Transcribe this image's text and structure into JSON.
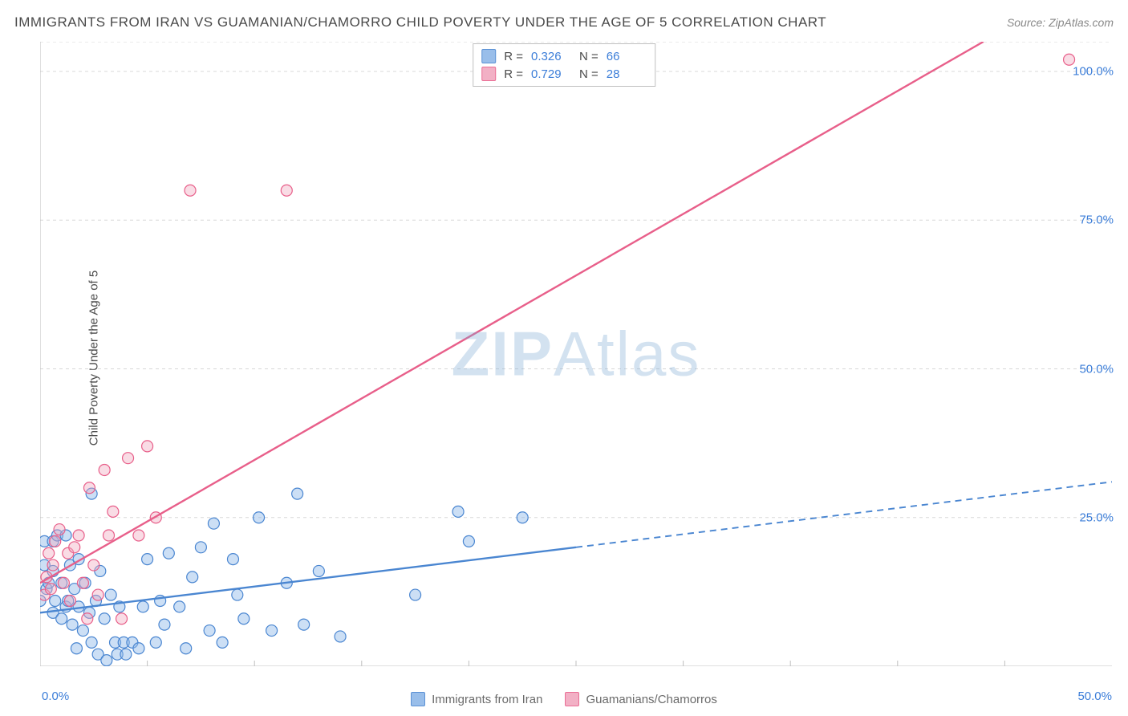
{
  "title": "IMMIGRANTS FROM IRAN VS GUAMANIAN/CHAMORRO CHILD POVERTY UNDER THE AGE OF 5 CORRELATION CHART",
  "source": "Source: ZipAtlas.com",
  "watermark": "ZIPAtlas",
  "y_axis_label": "Child Poverty Under the Age of 5",
  "chart": {
    "type": "scatter",
    "xlim": [
      0,
      50
    ],
    "ylim": [
      0,
      105
    ],
    "x_tick_min": "0.0%",
    "x_tick_max": "50.0%",
    "y_ticks": [
      {
        "value": 25,
        "label": "25.0%"
      },
      {
        "value": 50,
        "label": "50.0%"
      },
      {
        "value": 75,
        "label": "75.0%"
      },
      {
        "value": 100,
        "label": "100.0%"
      }
    ],
    "x_minor_ticks": [
      5,
      10,
      15,
      20,
      25,
      30,
      35,
      40,
      45
    ],
    "grid_color": "#d8d8d8",
    "grid_dash": "4 4",
    "axis_color": "#bfbfbf",
    "background_color": "#ffffff",
    "marker_radius": 7,
    "marker_stroke_width": 1.2,
    "line_width": 2.4,
    "series": [
      {
        "id": "iran",
        "name": "Immigrants from Iran",
        "color_fill": "#8fb8e8",
        "color_stroke": "#4a86d1",
        "fill_opacity": 0.45,
        "R": "0.326",
        "N": "66",
        "trend": {
          "x1": 0,
          "y1": 9,
          "x2": 50,
          "y2": 31,
          "solid_until_x": 25
        },
        "points": [
          [
            0,
            11
          ],
          [
            0.3,
            13
          ],
          [
            0.2,
            21
          ],
          [
            0.2,
            17
          ],
          [
            0.4,
            14
          ],
          [
            0.6,
            9
          ],
          [
            0.6,
            16
          ],
          [
            0.6,
            21
          ],
          [
            0.7,
            11
          ],
          [
            0.8,
            22
          ],
          [
            1.0,
            8
          ],
          [
            1.0,
            14
          ],
          [
            1.2,
            10
          ],
          [
            1.2,
            22
          ],
          [
            1.3,
            11
          ],
          [
            1.4,
            17
          ],
          [
            1.5,
            7
          ],
          [
            1.6,
            13
          ],
          [
            1.7,
            3
          ],
          [
            1.8,
            18
          ],
          [
            1.8,
            10
          ],
          [
            2.0,
            6
          ],
          [
            2.1,
            14
          ],
          [
            2.3,
            9
          ],
          [
            2.4,
            29
          ],
          [
            2.4,
            4
          ],
          [
            2.6,
            11
          ],
          [
            2.7,
            2
          ],
          [
            2.8,
            16
          ],
          [
            3.0,
            8
          ],
          [
            3.1,
            1
          ],
          [
            3.3,
            12
          ],
          [
            3.5,
            4
          ],
          [
            3.6,
            2
          ],
          [
            3.7,
            10
          ],
          [
            3.9,
            4
          ],
          [
            4.0,
            2
          ],
          [
            4.3,
            4
          ],
          [
            4.6,
            3
          ],
          [
            4.8,
            10
          ],
          [
            5.0,
            18
          ],
          [
            5.4,
            4
          ],
          [
            5.6,
            11
          ],
          [
            5.8,
            7
          ],
          [
            6.0,
            19
          ],
          [
            6.5,
            10
          ],
          [
            6.8,
            3
          ],
          [
            7.1,
            15
          ],
          [
            7.5,
            20
          ],
          [
            7.9,
            6
          ],
          [
            8.1,
            24
          ],
          [
            8.5,
            4
          ],
          [
            9.0,
            18
          ],
          [
            9.2,
            12
          ],
          [
            9.5,
            8
          ],
          [
            10.2,
            25
          ],
          [
            10.8,
            6
          ],
          [
            11.5,
            14
          ],
          [
            12.0,
            29
          ],
          [
            12.3,
            7
          ],
          [
            13.0,
            16
          ],
          [
            14.0,
            5
          ],
          [
            17.5,
            12
          ],
          [
            19.5,
            26
          ],
          [
            20.0,
            21
          ],
          [
            22.5,
            25
          ]
        ]
      },
      {
        "id": "guam",
        "name": "Guamanians/Chamorros",
        "color_fill": "#f1a8bf",
        "color_stroke": "#e85f8a",
        "fill_opacity": 0.4,
        "R": "0.729",
        "N": "28",
        "trend": {
          "x1": 0,
          "y1": 14,
          "x2": 44,
          "y2": 105,
          "solid_until_x": 44
        },
        "points": [
          [
            0.2,
            12
          ],
          [
            0.3,
            15
          ],
          [
            0.4,
            19
          ],
          [
            0.5,
            13
          ],
          [
            0.6,
            17
          ],
          [
            0.7,
            21
          ],
          [
            0.9,
            23
          ],
          [
            1.1,
            14
          ],
          [
            1.3,
            19
          ],
          [
            1.4,
            11
          ],
          [
            1.6,
            20
          ],
          [
            1.8,
            22
          ],
          [
            2.0,
            14
          ],
          [
            2.2,
            8
          ],
          [
            2.3,
            30
          ],
          [
            2.5,
            17
          ],
          [
            2.7,
            12
          ],
          [
            3.0,
            33
          ],
          [
            3.2,
            22
          ],
          [
            3.4,
            26
          ],
          [
            3.8,
            8
          ],
          [
            4.1,
            35
          ],
          [
            4.6,
            22
          ],
          [
            5.0,
            37
          ],
          [
            5.4,
            25
          ],
          [
            7.0,
            80
          ],
          [
            11.5,
            80
          ],
          [
            48,
            102
          ]
        ]
      }
    ]
  },
  "legend": {
    "items": [
      {
        "series": "iran",
        "label": "Immigrants from Iran"
      },
      {
        "series": "guam",
        "label": "Guamanians/Chamorros"
      }
    ]
  },
  "stats_legend": {
    "rows": [
      {
        "series": "iran",
        "r_label": "R =",
        "n_label": "N ="
      },
      {
        "series": "guam",
        "r_label": "R =",
        "n_label": "N ="
      }
    ]
  }
}
